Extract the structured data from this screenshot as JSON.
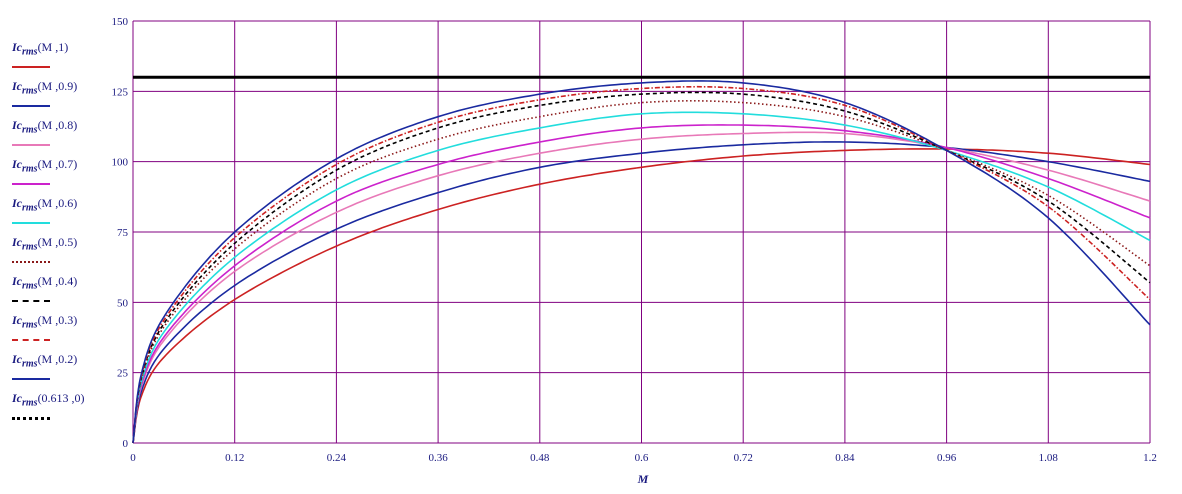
{
  "chart_data": {
    "type": "line",
    "xlabel": "M",
    "ylabel": "",
    "xlim": [
      0,
      1.2
    ],
    "ylim": [
      0,
      150
    ],
    "grid": true,
    "legend_position": "left",
    "x_ticks": [
      "0",
      "0.12",
      "0.24",
      "0.36",
      "0.48",
      "0.6",
      "0.72",
      "0.84",
      "0.96",
      "1.08",
      "1.2"
    ],
    "y_ticks": [
      "0",
      "25",
      "50",
      "75",
      "100",
      "125",
      "150"
    ],
    "x": [
      0,
      0.12,
      0.24,
      0.36,
      0.48,
      0.6,
      0.72,
      0.84,
      0.96,
      1.08,
      1.2
    ],
    "series": [
      {
        "name": "Icrms(M ,1)",
        "color": "#cc2222",
        "style": "solid",
        "values": [
          0,
          51,
          70,
          83,
          92,
          98,
          102,
          104,
          104.5,
          103,
          99
        ]
      },
      {
        "name": "Icrms(M ,0.9)",
        "color": "#1a2aa0",
        "style": "solid",
        "values": [
          0,
          56,
          76,
          89,
          98,
          103,
          106,
          107,
          105,
          100,
          93
        ]
      },
      {
        "name": "Icrms(M ,0.8)",
        "color": "#e879b8",
        "style": "solid",
        "values": [
          0,
          61,
          82,
          95,
          103,
          108,
          110,
          110,
          105,
          97,
          86
        ]
      },
      {
        "name": "Icrms(M ,0.7)",
        "color": "#cc22cc",
        "style": "solid",
        "values": [
          0,
          63,
          86,
          99,
          107,
          112,
          113,
          111,
          105,
          94,
          80
        ]
      },
      {
        "name": "Icrms(M ,0.6)",
        "color": "#22dddd",
        "style": "solid",
        "values": [
          0,
          66,
          90,
          104,
          112,
          117,
          117,
          113,
          104,
          91,
          72
        ]
      },
      {
        "name": "Icrms(M ,0.5)",
        "color": "#8b1a1a",
        "style": "dotted",
        "values": [
          0,
          69,
          94,
          108,
          116,
          121,
          121,
          116,
          104,
          88,
          63
        ]
      },
      {
        "name": "Icrms(M ,0.4)",
        "color": "#000000",
        "style": "dashed",
        "values": [
          0,
          71,
          97,
          112,
          120,
          124,
          124,
          118,
          104,
          86,
          57
        ]
      },
      {
        "name": "Icrms(M ,0.3)",
        "color": "#cc2222",
        "style": "dashdot",
        "values": [
          0,
          73,
          99,
          114,
          122,
          126,
          126,
          120,
          104,
          84,
          51
        ]
      },
      {
        "name": "Icrms(M ,0.2)",
        "color": "#1a2aa0",
        "style": "solid",
        "values": [
          0,
          75,
          101,
          116,
          124,
          128,
          128,
          121,
          104,
          80,
          42
        ]
      },
      {
        "name": "Icrms(0.613 ,0)",
        "color": "#000000",
        "style": "dotted-bold",
        "values": [
          130,
          130,
          130,
          130,
          130,
          130,
          130,
          130,
          130,
          130,
          130
        ]
      }
    ],
    "threshold_line": {
      "value": 130,
      "color": "#000000"
    }
  },
  "legend": {
    "items": [
      {
        "prefix": "Ic",
        "sub": "rms",
        "args": "(M ,1)",
        "color": "#cc2222",
        "style": "solid"
      },
      {
        "prefix": "Ic",
        "sub": "rms",
        "args": "(M ,0.9)",
        "color": "#1a2aa0",
        "style": "solid"
      },
      {
        "prefix": "Ic",
        "sub": "rms",
        "args": "(M ,0.8)",
        "color": "#e879b8",
        "style": "solid"
      },
      {
        "prefix": "Ic",
        "sub": "rms",
        "args": "(M ,0.7)",
        "color": "#cc22cc",
        "style": "solid"
      },
      {
        "prefix": "Ic",
        "sub": "rms",
        "args": "(M ,0.6)",
        "color": "#22dddd",
        "style": "solid"
      },
      {
        "prefix": "Ic",
        "sub": "rms",
        "args": "(M ,0.5)",
        "color": "#8b1a1a",
        "style": "dotted"
      },
      {
        "prefix": "Ic",
        "sub": "rms",
        "args": "(M ,0.4)",
        "color": "#000000",
        "style": "dashed"
      },
      {
        "prefix": "Ic",
        "sub": "rms",
        "args": "(M ,0.3)",
        "color": "#cc2222",
        "style": "dashdot"
      },
      {
        "prefix": "Ic",
        "sub": "rms",
        "args": "(M ,0.2)",
        "color": "#1a2aa0",
        "style": "solid"
      },
      {
        "prefix": "Ic",
        "sub": "rms",
        "args": "(0.613 ,0)",
        "color": "#000000",
        "style": "dotted-bold"
      }
    ]
  },
  "colors": {
    "grid": "#800080",
    "axis_text": "#1a1a80"
  }
}
